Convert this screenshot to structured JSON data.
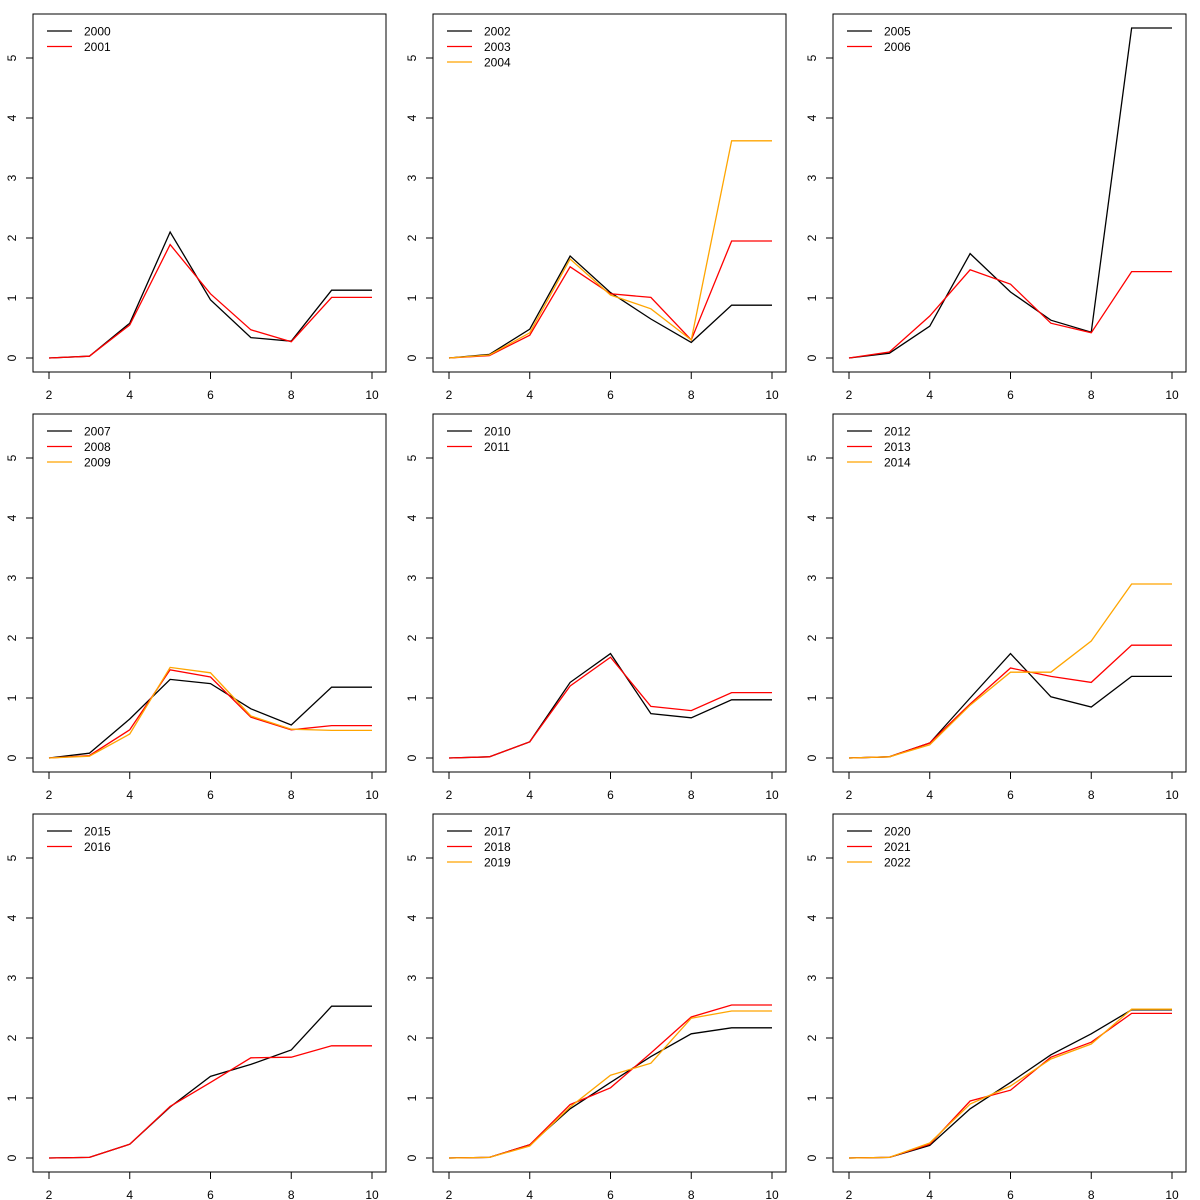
{
  "chart_data": [
    {
      "type": "line",
      "x": [
        2,
        3,
        4,
        5,
        6,
        7,
        8,
        9,
        10
      ],
      "xlim": [
        2,
        10
      ],
      "ylim": [
        0,
        5.5
      ],
      "xticks": [
        "2",
        "4",
        "6",
        "8",
        "10"
      ],
      "yticks": [
        "0",
        "1",
        "2",
        "3",
        "4",
        "5"
      ],
      "legend_position": "top-left",
      "series": [
        {
          "name": "2000",
          "color": "#000000",
          "values": [
            0,
            0.03,
            0.58,
            2.1,
            0.97,
            0.34,
            0.28,
            1.13,
            1.13
          ]
        },
        {
          "name": "2001",
          "color": "#ff0000",
          "values": [
            0,
            0.03,
            0.55,
            1.89,
            1.07,
            0.47,
            0.27,
            1.01,
            1.01
          ]
        }
      ]
    },
    {
      "type": "line",
      "x": [
        2,
        3,
        4,
        5,
        6,
        7,
        8,
        9,
        10
      ],
      "xlim": [
        2,
        10
      ],
      "ylim": [
        0,
        5.5
      ],
      "xticks": [
        "2",
        "4",
        "6",
        "8",
        "10"
      ],
      "yticks": [
        "0",
        "1",
        "2",
        "3",
        "4",
        "5"
      ],
      "legend_position": "top-left",
      "series": [
        {
          "name": "2002",
          "color": "#000000",
          "values": [
            0,
            0.06,
            0.48,
            1.7,
            1.09,
            0.65,
            0.26,
            0.88,
            0.88
          ]
        },
        {
          "name": "2003",
          "color": "#ff0000",
          "values": [
            0,
            0.04,
            0.38,
            1.52,
            1.07,
            1.01,
            0.3,
            1.95,
            1.95
          ]
        },
        {
          "name": "2004",
          "color": "#ffa500",
          "values": [
            0,
            0.05,
            0.42,
            1.65,
            1.05,
            0.82,
            0.3,
            3.62,
            3.62
          ]
        }
      ]
    },
    {
      "type": "line",
      "x": [
        2,
        3,
        4,
        5,
        6,
        7,
        8,
        9,
        10
      ],
      "xlim": [
        2,
        10
      ],
      "ylim": [
        0,
        5.5
      ],
      "xticks": [
        "2",
        "4",
        "6",
        "8",
        "10"
      ],
      "yticks": [
        "0",
        "1",
        "2",
        "3",
        "4",
        "5"
      ],
      "legend_position": "top-left",
      "series": [
        {
          "name": "2005",
          "color": "#000000",
          "values": [
            0,
            0.08,
            0.53,
            1.74,
            1.1,
            0.63,
            0.43,
            5.5,
            5.5
          ]
        },
        {
          "name": "2006",
          "color": "#ff0000",
          "values": [
            0,
            0.1,
            0.7,
            1.47,
            1.23,
            0.58,
            0.42,
            1.44,
            1.44
          ]
        }
      ]
    },
    {
      "type": "line",
      "x": [
        2,
        3,
        4,
        5,
        6,
        7,
        8,
        9,
        10
      ],
      "xlim": [
        2,
        10
      ],
      "ylim": [
        0,
        5.5
      ],
      "xticks": [
        "2",
        "4",
        "6",
        "8",
        "10"
      ],
      "yticks": [
        "0",
        "1",
        "2",
        "3",
        "4",
        "5"
      ],
      "legend_position": "top-left",
      "series": [
        {
          "name": "2007",
          "color": "#000000",
          "values": [
            0,
            0.08,
            0.65,
            1.31,
            1.24,
            0.82,
            0.55,
            1.18,
            1.18
          ]
        },
        {
          "name": "2008",
          "color": "#ff0000",
          "values": [
            0,
            0.04,
            0.47,
            1.47,
            1.35,
            0.68,
            0.47,
            0.54,
            0.54
          ]
        },
        {
          "name": "2009",
          "color": "#ffa500",
          "values": [
            0,
            0.03,
            0.4,
            1.51,
            1.42,
            0.7,
            0.48,
            0.46,
            0.46
          ]
        }
      ]
    },
    {
      "type": "line",
      "x": [
        2,
        3,
        4,
        5,
        6,
        7,
        8,
        9,
        10
      ],
      "xlim": [
        2,
        10
      ],
      "ylim": [
        0,
        5.5
      ],
      "xticks": [
        "2",
        "4",
        "6",
        "8",
        "10"
      ],
      "yticks": [
        "0",
        "1",
        "2",
        "3",
        "4",
        "5"
      ],
      "legend_position": "top-left",
      "series": [
        {
          "name": "2010",
          "color": "#000000",
          "values": [
            0,
            0.02,
            0.27,
            1.26,
            1.74,
            0.74,
            0.67,
            0.97,
            0.97
          ]
        },
        {
          "name": "2011",
          "color": "#ff0000",
          "values": [
            0,
            0.02,
            0.27,
            1.2,
            1.68,
            0.86,
            0.79,
            1.09,
            1.09
          ]
        }
      ]
    },
    {
      "type": "line",
      "x": [
        2,
        3,
        4,
        5,
        6,
        7,
        8,
        9,
        10
      ],
      "xlim": [
        2,
        10
      ],
      "ylim": [
        0,
        5.5
      ],
      "xticks": [
        "2",
        "4",
        "6",
        "8",
        "10"
      ],
      "yticks": [
        "0",
        "1",
        "2",
        "3",
        "4",
        "5"
      ],
      "legend_position": "top-left",
      "series": [
        {
          "name": "2012",
          "color": "#000000",
          "values": [
            0,
            0.02,
            0.25,
            1,
            1.74,
            1.02,
            0.85,
            1.36,
            1.36
          ]
        },
        {
          "name": "2013",
          "color": "#ff0000",
          "values": [
            0,
            0.02,
            0.25,
            0.9,
            1.5,
            1.36,
            1.26,
            1.88,
            1.88
          ]
        },
        {
          "name": "2014",
          "color": "#ffa500",
          "values": [
            0,
            0.02,
            0.22,
            0.88,
            1.43,
            1.43,
            1.95,
            2.9,
            2.9
          ]
        }
      ]
    },
    {
      "type": "line",
      "x": [
        2,
        3,
        4,
        5,
        6,
        7,
        8,
        9,
        10
      ],
      "xlim": [
        2,
        10
      ],
      "ylim": [
        0,
        5.5
      ],
      "xticks": [
        "2",
        "4",
        "6",
        "8",
        "10"
      ],
      "yticks": [
        "0",
        "1",
        "2",
        "3",
        "4",
        "5"
      ],
      "legend_position": "top-left",
      "series": [
        {
          "name": "2015",
          "color": "#000000",
          "values": [
            0,
            0.01,
            0.23,
            0.85,
            1.36,
            1.56,
            1.8,
            2.53,
            2.53
          ]
        },
        {
          "name": "2016",
          "color": "#ff0000",
          "values": [
            0,
            0.01,
            0.23,
            0.86,
            1.26,
            1.67,
            1.68,
            1.87,
            1.87
          ]
        }
      ]
    },
    {
      "type": "line",
      "x": [
        2,
        3,
        4,
        5,
        6,
        7,
        8,
        9,
        10
      ],
      "xlim": [
        2,
        10
      ],
      "ylim": [
        0,
        5.5
      ],
      "xticks": [
        "2",
        "4",
        "6",
        "8",
        "10"
      ],
      "yticks": [
        "0",
        "1",
        "2",
        "3",
        "4",
        "5"
      ],
      "legend_position": "top-left",
      "series": [
        {
          "name": "2017",
          "color": "#000000",
          "values": [
            0,
            0.01,
            0.22,
            0.82,
            1.26,
            1.69,
            2.07,
            2.17,
            2.17
          ]
        },
        {
          "name": "2018",
          "color": "#ff0000",
          "values": [
            0,
            0.01,
            0.22,
            0.89,
            1.17,
            1.75,
            2.35,
            2.55,
            2.55
          ]
        },
        {
          "name": "2019",
          "color": "#ffa500",
          "values": [
            0,
            0.01,
            0.2,
            0.85,
            1.38,
            1.58,
            2.33,
            2.45,
            2.45
          ]
        }
      ]
    },
    {
      "type": "line",
      "x": [
        2,
        3,
        4,
        5,
        6,
        7,
        8,
        9,
        10
      ],
      "xlim": [
        2,
        10
      ],
      "ylim": [
        0,
        5.5
      ],
      "xticks": [
        "2",
        "4",
        "6",
        "8",
        "10"
      ],
      "yticks": [
        "0",
        "1",
        "2",
        "3",
        "4",
        "5"
      ],
      "legend_position": "top-left",
      "series": [
        {
          "name": "2020",
          "color": "#000000",
          "values": [
            0,
            0.01,
            0.21,
            0.82,
            1.26,
            1.72,
            2.07,
            2.47,
            2.47
          ]
        },
        {
          "name": "2021",
          "color": "#ff0000",
          "values": [
            0,
            0.01,
            0.23,
            0.95,
            1.13,
            1.68,
            1.93,
            2.41,
            2.41
          ]
        },
        {
          "name": "2022",
          "color": "#ffa500",
          "values": [
            0,
            0.01,
            0.25,
            0.9,
            1.2,
            1.65,
            1.9,
            2.48,
            2.48
          ]
        }
      ]
    }
  ]
}
